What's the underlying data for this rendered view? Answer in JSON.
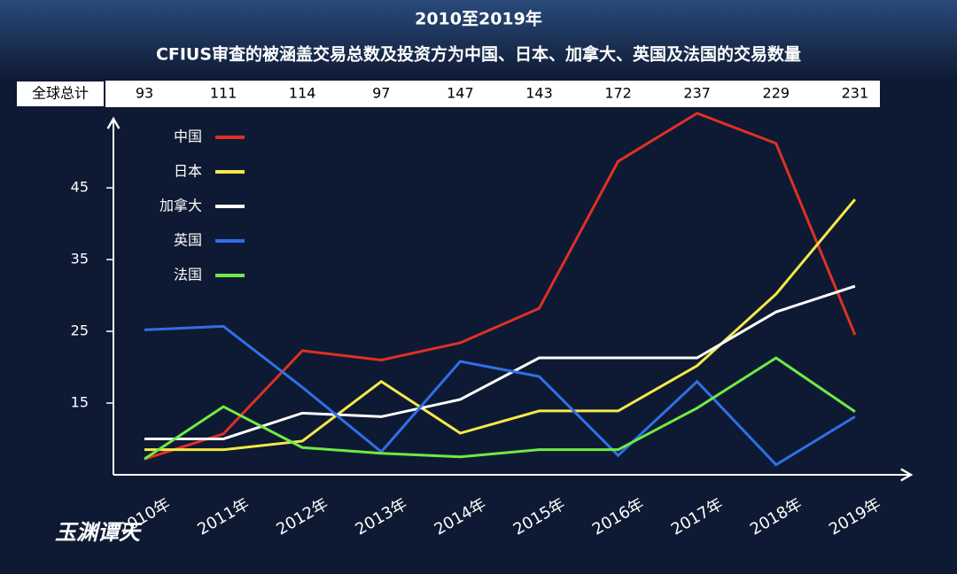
{
  "chart_data": {
    "type": "line",
    "title": "2010至2019年",
    "subtitle": "CFIUS审查的被涵盖交易总数及投资方为中国、日本、加拿大、英国及法国的交易数量",
    "totals": {
      "label": "全球总计",
      "values": [
        "93",
        "111",
        "114",
        "97",
        "147",
        "143",
        "172",
        "237",
        "229",
        "231"
      ]
    },
    "watermark": "玉渊谭天",
    "categories": [
      "2010年",
      "2011年",
      "2012年",
      "2013年",
      "2014年",
      "2015年",
      "2016年",
      "2017年",
      "2018年",
      "2019年"
    ],
    "series": [
      {
        "name": "中国",
        "color": "#e03024",
        "values": [
          7.2,
          10.7,
          22.3,
          21,
          23.4,
          28.2,
          48.7,
          55.4,
          51.2,
          24.5
        ]
      },
      {
        "name": "日本",
        "color": "#f5e94a",
        "values": [
          8.5,
          8.5,
          9.7,
          18,
          10.8,
          13.9,
          13.9,
          20.2,
          30.2,
          43.4
        ]
      },
      {
        "name": "加拿大",
        "color": "#ffffff",
        "values": [
          10,
          10,
          13.6,
          13.1,
          15.5,
          21.3,
          21.3,
          21.3,
          27.7,
          31.3
        ]
      },
      {
        "name": "英国",
        "color": "#2f6fe8",
        "values": [
          25.2,
          25.7,
          17.2,
          8.2,
          20.8,
          18.7,
          7.7,
          18,
          6.4,
          13.1
        ]
      },
      {
        "name": "法国",
        "color": "#6eeb45",
        "values": [
          7.2,
          14.5,
          8.8,
          8,
          7.5,
          8.5,
          8.5,
          14.3,
          21.3,
          13.8
        ]
      }
    ],
    "ylim": [
      5,
      56
    ],
    "yticks": [
      15,
      25,
      35,
      45
    ],
    "legend": "upper-left"
  }
}
